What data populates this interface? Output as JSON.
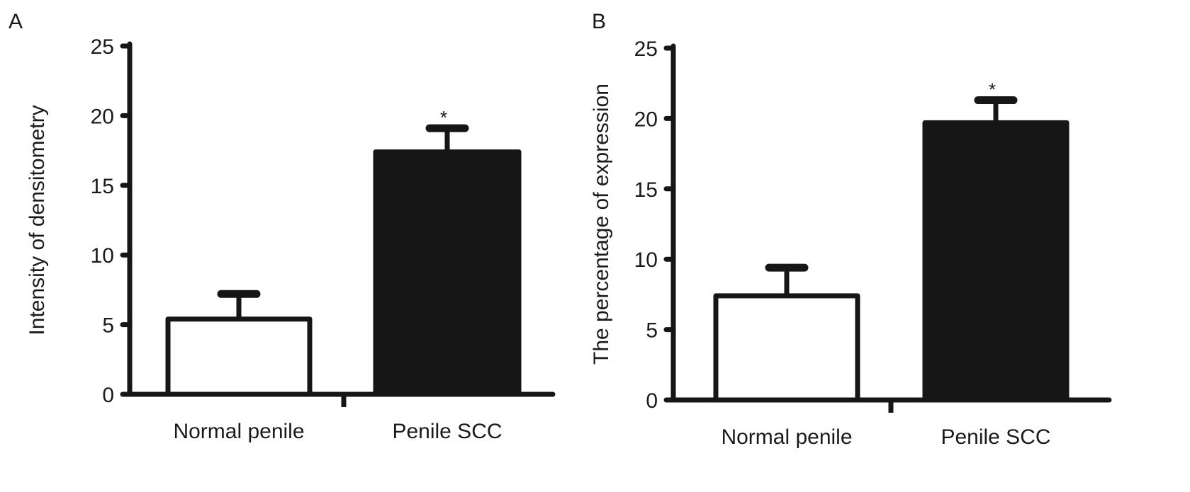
{
  "chart_data": [
    {
      "type": "bar",
      "panel_label": "A",
      "ylabel": "Intensity of densitometry",
      "xlabel": "",
      "categories": [
        "Normal penile",
        "Penile SCC"
      ],
      "values": [
        5.4,
        17.4
      ],
      "error_upper": [
        7.2,
        19.1
      ],
      "annotations": [
        "",
        "*"
      ],
      "bar_fill": [
        "#ffffff",
        "#161616"
      ],
      "ylim": [
        0,
        25
      ],
      "yticks": [
        0,
        5,
        10,
        15,
        20,
        25
      ],
      "grid": false
    },
    {
      "type": "bar",
      "panel_label": "B",
      "ylabel": "The percentage of expression",
      "xlabel": "",
      "categories": [
        "Normal penile",
        "Penile SCC"
      ],
      "values": [
        7.4,
        19.7
      ],
      "error_upper": [
        9.4,
        21.3
      ],
      "annotations": [
        "",
        "*"
      ],
      "bar_fill": [
        "#ffffff",
        "#161616"
      ],
      "ylim": [
        0,
        25
      ],
      "yticks": [
        0,
        5,
        10,
        15,
        20,
        25
      ],
      "grid": false
    }
  ]
}
